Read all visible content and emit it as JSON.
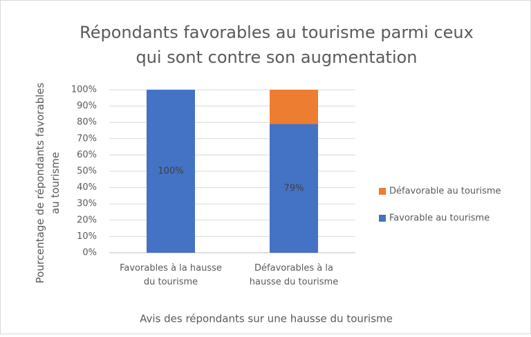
{
  "chart_data": {
    "type": "stacked_bar",
    "title": "Répondants favorables au tourisme parmi ceux qui sont contre son augmentation",
    "x_label": "Avis des répondants sur une hausse du tourisme",
    "y_label": "Pourcentage de répondants favorables au tourisme",
    "categories": [
      "Favorables à la hausse du tourisme",
      "Défavorables à la hausse du tourisme"
    ],
    "series": [
      {
        "name": "Favorable au tourisme",
        "color": "#4472c4",
        "values": [
          100,
          79
        ],
        "value_labels": [
          "100%",
          "79%"
        ]
      },
      {
        "name": "Défavorable au tourisme",
        "color": "#ed7d31",
        "values": [
          0,
          21
        ]
      }
    ],
    "ylim": [
      0,
      100
    ],
    "yticks": [
      {
        "value": 0,
        "label": "0%"
      },
      {
        "value": 10,
        "label": "10%"
      },
      {
        "value": 20,
        "label": "20%"
      },
      {
        "value": 30,
        "label": "30%"
      },
      {
        "value": 40,
        "label": "40%"
      },
      {
        "value": 50,
        "label": "50%"
      },
      {
        "value": 60,
        "label": "60%"
      },
      {
        "value": 70,
        "label": "70%"
      },
      {
        "value": 80,
        "label": "80%"
      },
      {
        "value": 90,
        "label": "90%"
      },
      {
        "value": 100,
        "label": "100%"
      }
    ],
    "grid": true,
    "legend": "right"
  }
}
